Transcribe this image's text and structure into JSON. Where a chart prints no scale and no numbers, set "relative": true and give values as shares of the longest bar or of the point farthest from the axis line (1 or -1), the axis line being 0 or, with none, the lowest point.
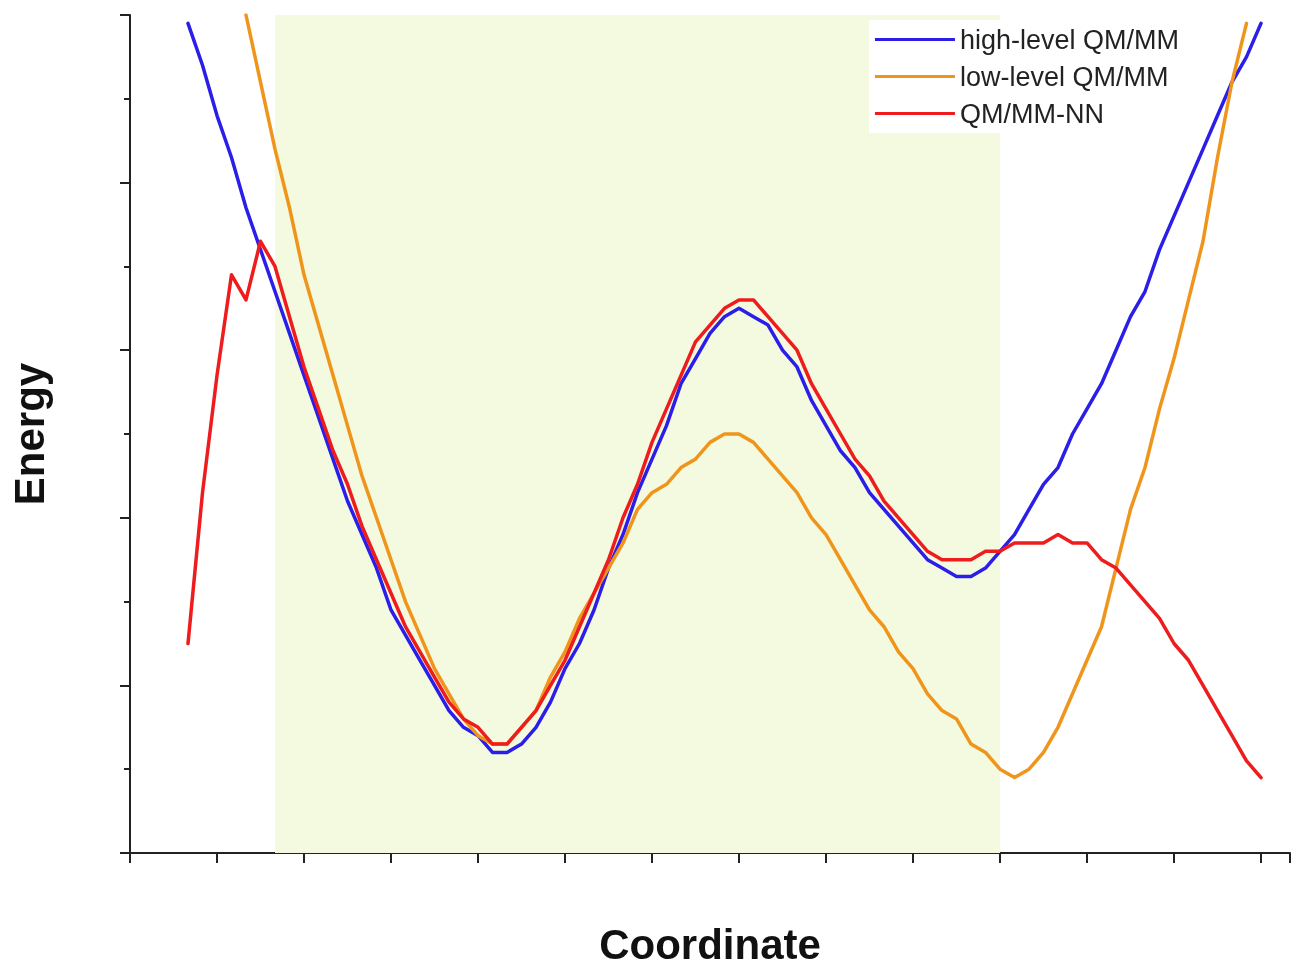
{
  "chart_data": {
    "type": "line",
    "relative": true,
    "xlabel": "Coordinate",
    "ylabel": "Energy",
    "legend": "top right",
    "grid": false,
    "marker": "none",
    "line_style": "solid",
    "categories": [
      null,
      null,
      null,
      null,
      null,
      null,
      null,
      null,
      null,
      null,
      null,
      null,
      null,
      null,
      null,
      null,
      null,
      null,
      null,
      null,
      null,
      null,
      null,
      null,
      null,
      null,
      null,
      null,
      null,
      null,
      null,
      null,
      null,
      null,
      null,
      null,
      null,
      null,
      null,
      null,
      null,
      null,
      null,
      null,
      null,
      null,
      null,
      null,
      null,
      null,
      null,
      null,
      null,
      null,
      null,
      null,
      null,
      null,
      null,
      null,
      null,
      null,
      null,
      null,
      null,
      null,
      null,
      null,
      null,
      null,
      null,
      null,
      null,
      null,
      null,
      null,
      null,
      null,
      null,
      null,
      null
    ],
    "series": [
      {
        "name": "high-level QM/MM",
        "color": "#2b1ee8",
        "values": [
          null,
          null,
          null,
          null,
          0.99,
          0.94,
          0.88,
          0.83,
          0.77,
          0.72,
          0.67,
          0.62,
          0.57,
          0.52,
          0.47,
          0.42,
          0.38,
          0.34,
          0.29,
          0.26,
          0.23,
          0.2,
          0.17,
          0.15,
          0.14,
          0.12,
          0.12,
          0.13,
          0.15,
          0.18,
          0.22,
          0.25,
          0.29,
          0.34,
          0.38,
          0.43,
          0.47,
          0.51,
          0.56,
          0.59,
          0.62,
          0.64,
          0.65,
          0.64,
          0.63,
          0.6,
          0.58,
          0.54,
          0.51,
          0.48,
          0.46,
          0.43,
          0.41,
          0.39,
          0.37,
          0.35,
          0.34,
          0.33,
          0.33,
          0.34,
          0.36,
          0.38,
          0.41,
          0.44,
          0.46,
          0.5,
          0.53,
          0.56,
          0.6,
          0.64,
          0.67,
          0.72,
          0.76,
          0.8,
          0.84,
          0.88,
          0.92,
          0.95,
          0.99,
          null,
          null
        ]
      },
      {
        "name": "low-level QM/MM",
        "color": "#f0951c",
        "values": [
          null,
          null,
          null,
          null,
          null,
          null,
          null,
          null,
          1.0,
          0.92,
          0.84,
          0.77,
          0.69,
          0.63,
          0.57,
          0.51,
          0.45,
          0.4,
          0.35,
          0.3,
          0.26,
          0.22,
          0.19,
          0.16,
          0.14,
          0.13,
          0.13,
          0.15,
          0.17,
          0.21,
          0.24,
          0.28,
          0.31,
          0.34,
          0.37,
          0.41,
          0.43,
          0.44,
          0.46,
          0.47,
          0.49,
          0.5,
          0.5,
          0.49,
          0.47,
          0.45,
          0.43,
          0.4,
          0.38,
          0.35,
          0.32,
          0.29,
          0.27,
          0.24,
          0.22,
          0.19,
          0.17,
          0.16,
          0.13,
          0.12,
          0.1,
          0.09,
          0.1,
          0.12,
          0.15,
          0.19,
          0.23,
          0.27,
          0.34,
          0.41,
          0.46,
          0.53,
          0.59,
          0.66,
          0.73,
          0.83,
          0.92,
          0.99,
          null,
          null,
          null
        ]
      },
      {
        "name": "QM/MM-NN",
        "color": "#ee1c1c",
        "values": [
          null,
          null,
          null,
          null,
          0.25,
          0.43,
          0.57,
          0.69,
          0.66,
          0.73,
          0.7,
          0.64,
          0.58,
          0.53,
          0.48,
          0.44,
          0.39,
          0.35,
          0.31,
          0.27,
          0.24,
          0.21,
          0.18,
          0.16,
          0.15,
          0.13,
          0.13,
          0.15,
          0.17,
          0.2,
          0.23,
          0.27,
          0.31,
          0.35,
          0.4,
          0.44,
          0.49,
          0.53,
          0.57,
          0.61,
          0.63,
          0.65,
          0.66,
          0.66,
          0.64,
          0.62,
          0.6,
          0.56,
          0.53,
          0.5,
          0.47,
          0.45,
          0.42,
          0.4,
          0.38,
          0.36,
          0.35,
          0.35,
          0.35,
          0.36,
          0.36,
          0.37,
          0.37,
          0.37,
          0.38,
          0.37,
          0.37,
          0.35,
          0.34,
          0.32,
          0.3,
          0.28,
          0.25,
          0.23,
          0.2,
          0.17,
          0.14,
          0.11,
          0.09,
          null,
          null
        ]
      }
    ]
  }
}
